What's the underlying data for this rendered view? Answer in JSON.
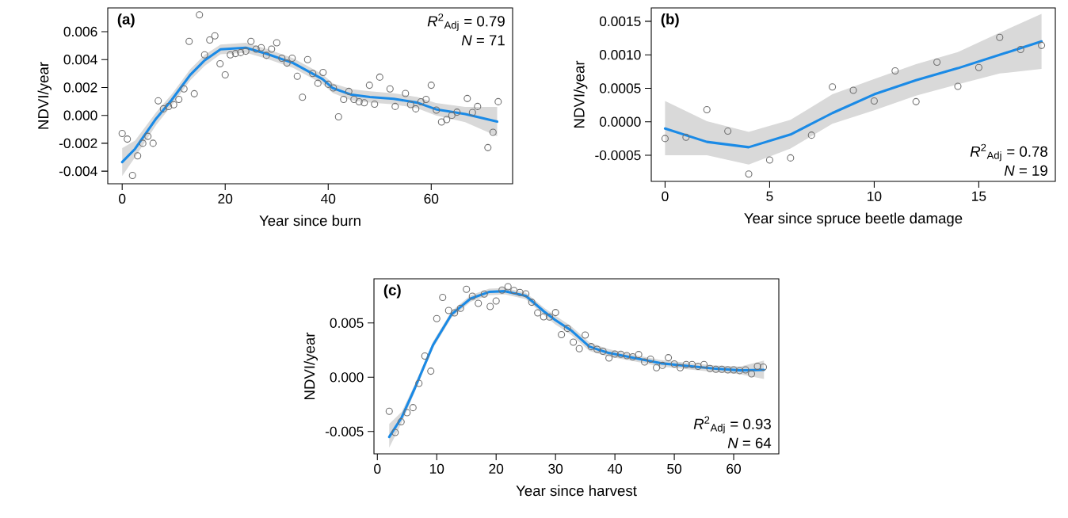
{
  "chart_data": [
    {
      "type": "scatter",
      "title": "(a)",
      "xlabel": "Year since burn",
      "ylabel": "NDVI/year",
      "xlim": [
        -2.8,
        75.8
      ],
      "ylim": [
        -0.0049,
        0.0077
      ],
      "xticks": [
        0,
        20,
        40,
        60
      ],
      "yticks": [
        {
          "value": -0.004,
          "label": "-0.004"
        },
        {
          "value": -0.002,
          "label": "-0.002"
        },
        {
          "value": 0,
          "label": "0.000"
        },
        {
          "value": 0.002,
          "label": "0.002"
        },
        {
          "value": 0.004,
          "label": "0.004"
        },
        {
          "value": 0.006,
          "label": "0.006"
        }
      ],
      "annotations": [
        "*R*$^{2}$$_{Adj}$ = 0.79",
        "*N* = 71"
      ],
      "series": [
        {
          "marker": "circle",
          "color": "#6e6e6e",
          "x": [
            0,
            1,
            2,
            3,
            4,
            5,
            6,
            7,
            8,
            9,
            10,
            11,
            12,
            13,
            14,
            15,
            16,
            17,
            18,
            19,
            20,
            21,
            22,
            23,
            24,
            25,
            26,
            27,
            28,
            29,
            30,
            31,
            32,
            33,
            34,
            35,
            36,
            37,
            38,
            39,
            40,
            41,
            42,
            43,
            44,
            45,
            46,
            47,
            48,
            49,
            50,
            52,
            53,
            55,
            56,
            57,
            58,
            59,
            60,
            61,
            62,
            63,
            64,
            65,
            67,
            68,
            69,
            71,
            72,
            73
          ],
          "values": [
            -0.0013,
            -0.0017,
            -0.0043,
            -0.0029,
            -0.002,
            -0.0015,
            -0.002,
            0.00104,
            0.00047,
            0.00063,
            0.00076,
            0.00114,
            0.0019,
            0.0053,
            0.00155,
            0.0072,
            0.00434,
            0.0054,
            0.0057,
            0.0037,
            0.0029,
            0.00434,
            0.00443,
            0.0045,
            0.0046,
            0.0053,
            0.00475,
            0.00485,
            0.0043,
            0.00475,
            0.0052,
            0.0041,
            0.00375,
            0.0041,
            0.0028,
            0.0013,
            0.004,
            0.003,
            0.0023,
            0.00307,
            0.00223,
            0.00197,
            -0.0001,
            0.00114,
            0.00172,
            0.00114,
            0.00097,
            0.0009,
            0.00216,
            0.0008,
            0.00274,
            0.0019,
            0.00064,
            0.00157,
            0.00078,
            0.00047,
            0.00097,
            0.00114,
            0.00216,
            0.00038,
            -0.00047,
            -0.0003,
            0.0,
            0.00023,
            0.00121,
            0.00021,
            0.00064,
            -0.00231,
            -0.00121,
            0.00098
          ]
        },
        {
          "type": "line",
          "marker": "none",
          "color": "#1a8ae6",
          "x": [
            0,
            2.5,
            6.6,
            9.6,
            13.2,
            16,
            19.1,
            24,
            28.1,
            33.2,
            38.9,
            40.9,
            44.5,
            48.1,
            52.7,
            57.3,
            60.9,
            66.6,
            72.8
          ],
          "values": [
            -0.00335,
            -0.0024,
            -0.00023,
            0.0011,
            0.0029,
            0.00394,
            0.00473,
            0.00485,
            0.00441,
            0.00375,
            0.0026,
            0.00195,
            0.00148,
            0.00132,
            0.00119,
            0.00091,
            0.00044,
            0.0001,
            -0.00045
          ],
          "upper": [
            -0.00235,
            -0.0018,
            0.00022,
            0.0015,
            0.0033,
            0.00434,
            0.00508,
            0.0052,
            0.00476,
            0.0041,
            0.00295,
            0.0023,
            0.00188,
            0.00172,
            0.00159,
            0.00131,
            0.00089,
            0.00061,
            0.0006
          ],
          "lower": [
            -0.00435,
            -0.003,
            -0.00068,
            0.0007,
            0.0025,
            0.00354,
            0.00438,
            0.0045,
            0.00406,
            0.0034,
            0.00225,
            0.0016,
            0.00108,
            0.00092,
            0.00079,
            0.00051,
            -1e-05,
            -0.00049,
            -0.0015
          ]
        }
      ]
    },
    {
      "type": "scatter",
      "title": "(b)",
      "xlabel": "Year since spruce beetle damage",
      "ylabel": "NDVI/year",
      "xlim": [
        -0.66,
        18.66
      ],
      "ylim": [
        -0.00089,
        0.0017
      ],
      "xticks": [
        0,
        5,
        10,
        15
      ],
      "yticks": [
        {
          "value": -0.0005,
          "label": "-0.0005"
        },
        {
          "value": 0,
          "label": "0.0000"
        },
        {
          "value": 0.0005,
          "label": "0.0005"
        },
        {
          "value": 0.001,
          "label": "0.0010"
        },
        {
          "value": 0.0015,
          "label": "0.0015"
        }
      ],
      "annotations": [
        "*R*$^{2}$$_{Adj}$ = 0.78",
        "*N* = 19"
      ],
      "series": [
        {
          "marker": "circle",
          "color": "#6e6e6e",
          "x": [
            0,
            1,
            2,
            3,
            4,
            5,
            6,
            7,
            8,
            9,
            10,
            11,
            12,
            13,
            14,
            15,
            16,
            17,
            18
          ],
          "values": [
            -0.00025,
            -0.00023,
            0.00018,
            -0.00014,
            -0.00078,
            -0.00057,
            -0.00054,
            -0.0002,
            0.00052,
            0.00047,
            0.00031,
            0.00076,
            0.0003,
            0.00089,
            0.00053,
            0.00081,
            0.00126,
            0.00108,
            0.00114
          ]
        },
        {
          "type": "line",
          "marker": "none",
          "color": "#1a8ae6",
          "x": [
            0,
            2,
            4,
            6,
            8,
            10,
            12,
            14,
            16,
            18
          ],
          "values": [
            -0.0001,
            -0.0003,
            -0.00038,
            -0.00019,
            0.00013,
            0.00041,
            0.00062,
            0.0008,
            0.001,
            0.0012
          ],
          "upper": [
            0.00031,
            1e-05,
            -0.00015,
            3e-05,
            0.00041,
            0.00064,
            0.00086,
            0.00104,
            0.00133,
            0.00161
          ],
          "lower": [
            -0.0005,
            -0.0005,
            -0.00064,
            -0.0004,
            -3e-05,
            0.00017,
            0.00039,
            0.00056,
            0.00072,
            0.00079
          ]
        }
      ]
    },
    {
      "type": "scatter",
      "title": "(c)",
      "xlabel": "Year since harvest",
      "ylabel": "NDVI/year",
      "xlim": [
        -0.57,
        67.6
      ],
      "ylim": [
        -0.00706,
        0.00907
      ],
      "xticks": [
        0,
        10,
        20,
        30,
        40,
        50,
        60
      ],
      "yticks": [
        {
          "value": -0.005,
          "label": "-0.005"
        },
        {
          "value": 0,
          "label": "0.000"
        },
        {
          "value": 0.005,
          "label": "0.005"
        }
      ],
      "annotations": [
        "*R*$^{2}$$_{Adj}$ = 0.93",
        "*N* = 64"
      ],
      "series": [
        {
          "marker": "circle",
          "color": "#6e6e6e",
          "x": [
            2,
            3,
            4,
            5,
            6,
            7,
            8,
            9,
            10,
            11,
            12,
            13,
            14,
            15,
            16,
            17,
            18,
            19,
            20,
            21,
            22,
            23,
            24,
            25,
            26,
            27,
            28,
            29,
            30,
            31,
            32,
            33,
            34,
            35,
            36,
            37,
            38,
            39,
            40,
            41,
            42,
            43,
            44,
            45,
            46,
            47,
            48,
            49,
            50,
            51,
            52,
            53,
            54,
            55,
            56,
            57,
            58,
            59,
            60,
            61,
            62,
            63,
            64,
            65
          ],
          "values": [
            -0.00314,
            -0.00509,
            -0.00411,
            -0.00326,
            -0.0028,
            -0.00056,
            0.00195,
            0.00056,
            0.0054,
            0.00735,
            0.00615,
            0.00593,
            0.00635,
            0.0081,
            0.00747,
            0.00681,
            0.00766,
            0.00652,
            0.00703,
            0.00803,
            0.00834,
            0.008,
            0.00781,
            0.00769,
            0.00691,
            0.00593,
            0.00557,
            0.00555,
            0.00596,
            0.00392,
            0.0045,
            0.00323,
            0.00263,
            0.00389,
            0.00282,
            0.00258,
            0.00239,
            0.00177,
            0.00214,
            0.00212,
            0.00199,
            0.00188,
            0.00209,
            0.00141,
            0.00166,
            0.00088,
            0.00109,
            0.0018,
            0.00122,
            0.00088,
            0.00117,
            0.00117,
            0.001,
            0.00117,
            0.0008,
            0.00073,
            0.00073,
            0.00068,
            0.00068,
            0.00061,
            0.00068,
            0.00031,
            0.001,
            0.00093
          ]
        },
        {
          "type": "line",
          "marker": "none",
          "color": "#1a8ae6",
          "x": [
            2,
            4.1,
            6.3,
            9.4,
            12.5,
            15.7,
            18.8,
            21.5,
            25,
            28.1,
            29.9,
            32.6,
            35.7,
            38.8,
            43.3,
            47.7,
            52.2,
            56.6,
            61.1,
            65.1
          ],
          "values": [
            -0.0055,
            -0.0037,
            -0.00102,
            0.003,
            0.0058,
            0.00725,
            0.00786,
            0.00793,
            0.0075,
            0.00604,
            0.0053,
            0.00433,
            0.00282,
            0.00226,
            0.00177,
            0.00129,
            0.00104,
            0.0008,
            0.00063,
            0.00068
          ],
          "upper": [
            -0.0043,
            -0.0032,
            -0.00067,
            0.0033,
            0.0061,
            0.00755,
            0.00816,
            0.00823,
            0.0078,
            0.00639,
            0.0057,
            0.00473,
            0.00322,
            0.00261,
            0.00207,
            0.00159,
            0.00134,
            0.0011,
            0.00098,
            0.00153
          ],
          "lower": [
            -0.0065,
            -0.0042,
            -0.00137,
            0.0027,
            0.0055,
            0.00695,
            0.00756,
            0.00763,
            0.0072,
            0.00569,
            0.0049,
            0.00393,
            0.00242,
            0.00191,
            0.00147,
            0.00099,
            0.00074,
            0.0005,
            0.00028,
            -0.00017
          ]
        }
      ]
    }
  ]
}
